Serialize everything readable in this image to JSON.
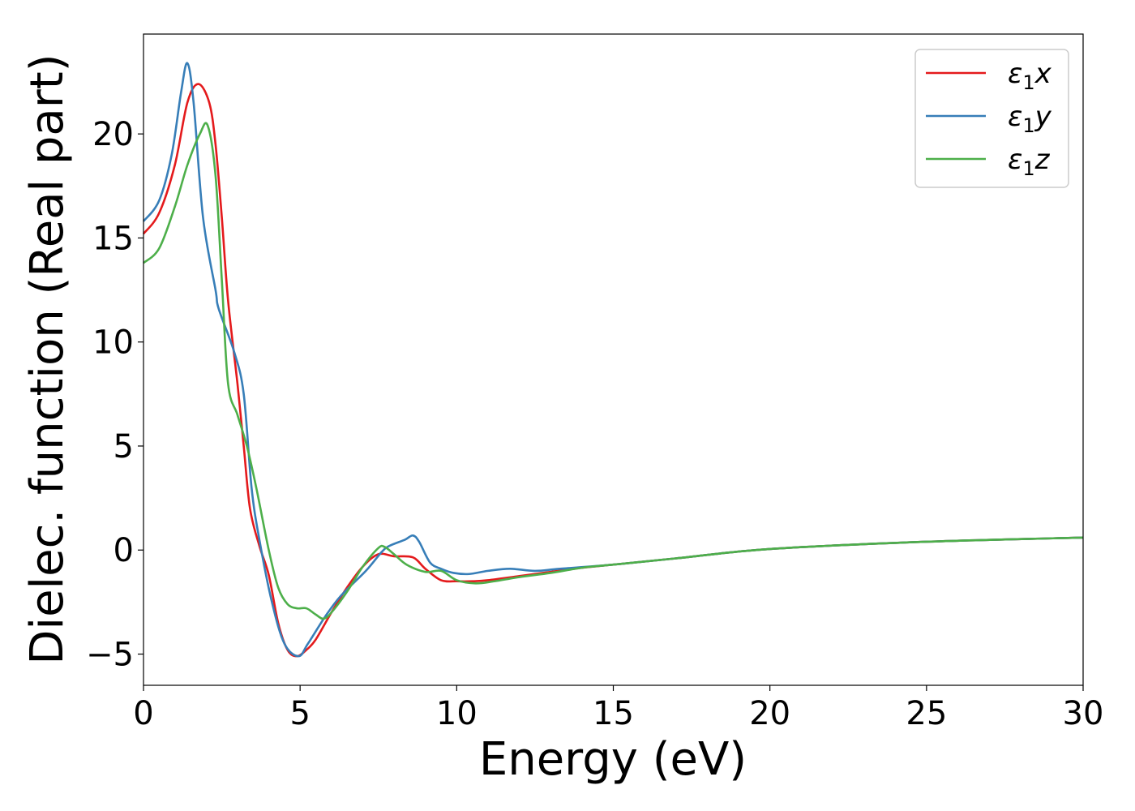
{
  "chart_data": {
    "type": "line",
    "title": "",
    "xlabel": "Energy (eV)",
    "ylabel": "Dielec. function (Real part)",
    "xlim": [
      0,
      30
    ],
    "ylim": [
      -6.5,
      24.8
    ],
    "xticks": [
      0,
      5,
      10,
      15,
      20,
      25,
      30
    ],
    "yticks": [
      -5,
      0,
      5,
      10,
      15,
      20
    ],
    "ytick_labels": [
      "−5",
      "0",
      "5",
      "10",
      "15",
      "20"
    ],
    "grid": false,
    "legend_position": "top-right",
    "series": [
      {
        "name": "ε1x",
        "symbol": "ε",
        "sub": "1",
        "var": "x",
        "color": "#e41a1c",
        "x": [
          0,
          0.5,
          1.0,
          1.4,
          1.75,
          2.1,
          2.3,
          2.5,
          2.7,
          3.0,
          3.2,
          3.4,
          3.7,
          4.0,
          4.3,
          4.6,
          4.9,
          5.2,
          5.5,
          6.0,
          6.5,
          7.0,
          7.5,
          8.0,
          8.6,
          9.0,
          9.5,
          10,
          10.5,
          11,
          12,
          13,
          14,
          15,
          17,
          20,
          25,
          30
        ],
        "y": [
          15.2,
          16.2,
          18.5,
          21.5,
          22.4,
          21.5,
          19.5,
          16,
          12,
          8,
          5,
          2,
          0.2,
          -1.2,
          -3.5,
          -4.8,
          -5.1,
          -4.8,
          -4.3,
          -3.0,
          -1.8,
          -0.8,
          -0.2,
          -0.3,
          -0.35,
          -0.9,
          -1.45,
          -1.5,
          -1.5,
          -1.45,
          -1.25,
          -1.05,
          -0.85,
          -0.7,
          -0.4,
          0.05,
          0.4,
          0.6
        ]
      },
      {
        "name": "ε1y",
        "symbol": "ε",
        "sub": "1",
        "var": "y",
        "color": "#377eb8",
        "x": [
          0,
          0.5,
          0.9,
          1.2,
          1.4,
          1.6,
          1.9,
          2.3,
          2.4,
          2.9,
          3.2,
          3.45,
          3.7,
          4.1,
          4.5,
          4.95,
          5.25,
          5.8,
          6.3,
          7.1,
          7.6,
          7.85,
          8.35,
          8.6,
          8.8,
          9.15,
          9.5,
          9.9,
          10.4,
          11,
          11.7,
          12.5,
          13.3,
          15,
          17,
          20,
          25,
          30
        ],
        "y": [
          15.8,
          16.8,
          19,
          22,
          23.4,
          21.5,
          16,
          12.5,
          11.6,
          9.5,
          7.5,
          3,
          0.5,
          -2.5,
          -4.5,
          -5.1,
          -4.5,
          -3.2,
          -2.2,
          -1,
          -0.1,
          0.2,
          0.5,
          0.7,
          0.4,
          -0.6,
          -0.9,
          -1.1,
          -1.15,
          -1.0,
          -0.9,
          -1.0,
          -0.9,
          -0.7,
          -0.4,
          0.05,
          0.4,
          0.6
        ]
      },
      {
        "name": "ε1z",
        "symbol": "ε",
        "sub": "1",
        "var": "z",
        "color": "#4daf4a",
        "x": [
          0,
          0.5,
          1.0,
          1.4,
          1.8,
          2.05,
          2.3,
          2.5,
          2.7,
          3.0,
          3.3,
          3.6,
          4.0,
          4.3,
          4.6,
          4.9,
          5.2,
          5.5,
          5.75,
          6.0,
          6.5,
          7.0,
          7.5,
          7.7,
          8.0,
          8.4,
          9.0,
          9.5,
          10.0,
          10.6,
          11.2,
          12,
          13,
          14,
          15,
          17,
          20,
          25,
          30
        ],
        "y": [
          13.8,
          14.5,
          16.5,
          18.5,
          20,
          20.4,
          18,
          13,
          8,
          6.5,
          5,
          3,
          0,
          -1.8,
          -2.6,
          -2.8,
          -2.8,
          -3.1,
          -3.3,
          -3.0,
          -2.0,
          -0.8,
          0.1,
          0.15,
          -0.2,
          -0.7,
          -1.05,
          -1.0,
          -1.45,
          -1.6,
          -1.5,
          -1.3,
          -1.1,
          -0.85,
          -0.7,
          -0.4,
          0.05,
          0.4,
          0.6
        ]
      }
    ]
  }
}
